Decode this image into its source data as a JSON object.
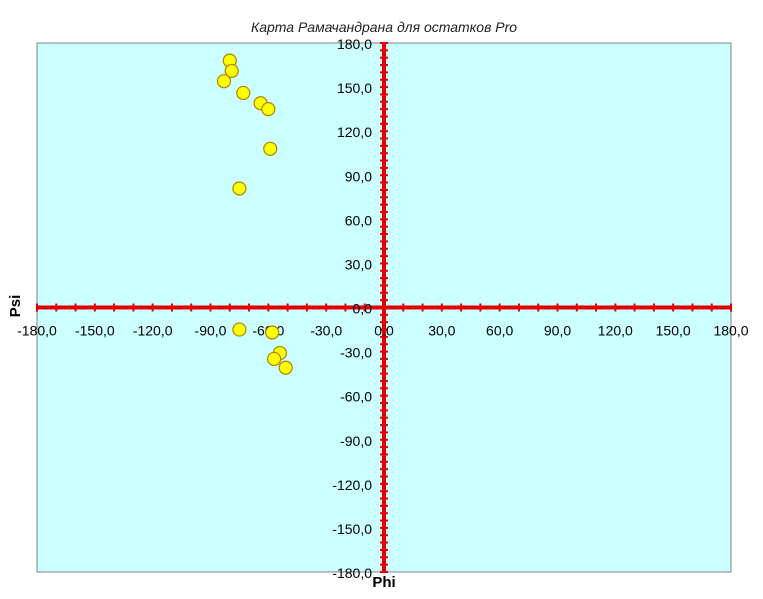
{
  "chart_data": {
    "type": "scatter",
    "title": "Карта Рамачандрана для остатков Pro",
    "xlabel": "Phi",
    "ylabel": "Psi",
    "xlim": [
      -180,
      180
    ],
    "ylim": [
      -180,
      180
    ],
    "xticks": [
      -180,
      -150,
      -120,
      -90,
      -60,
      -30,
      0,
      30,
      60,
      90,
      120,
      150,
      180
    ],
    "yticks": [
      -180,
      -150,
      -120,
      -90,
      -60,
      -30,
      0,
      30,
      60,
      90,
      120,
      150,
      180
    ],
    "x_tick_labels": [
      "-180,0",
      "-150,0",
      "-120,0",
      "-90,0",
      "-60,0",
      "-30,0",
      "0,0",
      "30,0",
      "60,0",
      "90,0",
      "120,0",
      "150,0",
      "180,0"
    ],
    "y_tick_labels": [
      "-180,0",
      "-150,0",
      "-120,0",
      "-90,0",
      "-60,0",
      "-30,0",
      "0,0",
      "30,0",
      "60,0",
      "90,0",
      "120,0",
      "150,0",
      "180,0"
    ],
    "grid": false,
    "series": [
      {
        "points": [
          {
            "x": -80,
            "y": 168
          },
          {
            "x": -79,
            "y": 161
          },
          {
            "x": -83,
            "y": 154
          },
          {
            "x": -73,
            "y": 146
          },
          {
            "x": -64,
            "y": 139
          },
          {
            "x": -60,
            "y": 135
          },
          {
            "x": -59,
            "y": 108
          },
          {
            "x": -75,
            "y": 81
          },
          {
            "x": -75,
            "y": -15
          },
          {
            "x": -58,
            "y": -17
          },
          {
            "x": -54,
            "y": -31
          },
          {
            "x": -57,
            "y": -35
          },
          {
            "x": -51,
            "y": -41
          }
        ]
      }
    ]
  },
  "colors": {
    "plot_background": "#ccffff",
    "plot_border": "#808080",
    "axis": "#e00000",
    "marker_fill": "#ffff00",
    "marker_stroke": "#b08000"
  }
}
